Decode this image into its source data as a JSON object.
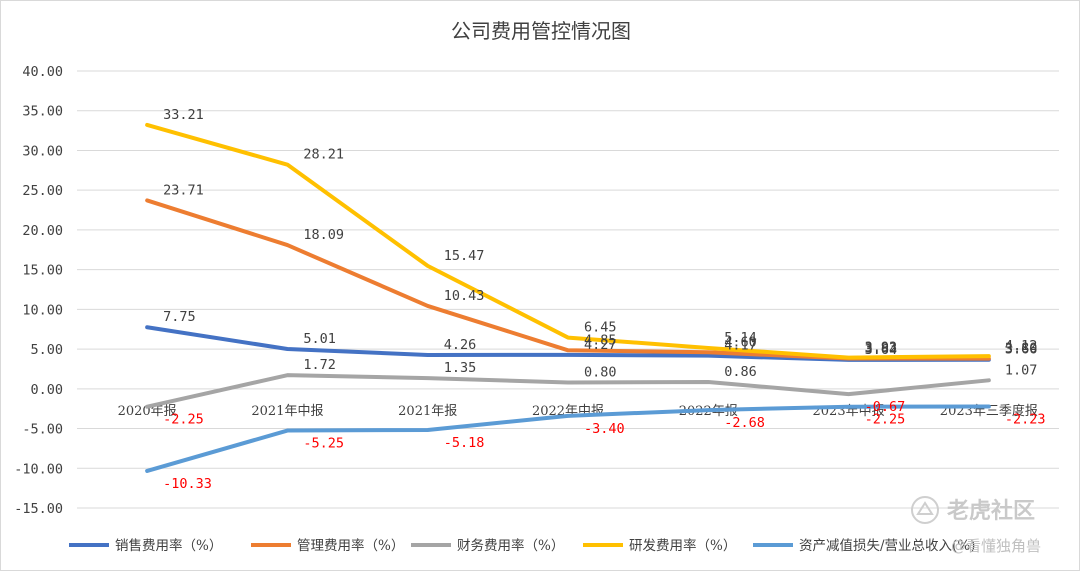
{
  "chart_data": {
    "type": "line",
    "title": "公司费用管控情况图",
    "categories": [
      "2020年报",
      "2021年中报",
      "2021年报",
      "2022年中报",
      "2022年报",
      "2023年中报",
      "2023年三季度报"
    ],
    "ylim": [
      -15,
      40
    ],
    "yticks": [
      "-15.00",
      "-10.00",
      "-5.00",
      "0.00",
      "5.00",
      "10.00",
      "15.00",
      "20.00",
      "25.00",
      "30.00",
      "35.00",
      "40.00"
    ],
    "ytick_values": [
      -15,
      -10,
      -5,
      0,
      5,
      10,
      15,
      20,
      25,
      30,
      35,
      40
    ],
    "grid": true,
    "legend_position": "bottom",
    "series": [
      {
        "name": "销售费用率（%）",
        "color": "#4472c4",
        "values": [
          7.75,
          5.01,
          4.26,
          4.27,
          4.17,
          3.64,
          3.66
        ],
        "labels": [
          "7.75",
          "5.01",
          "4.26",
          "4.27",
          "4.17",
          "3.64",
          "3.66"
        ]
      },
      {
        "name": "管理费用率（%）",
        "color": "#ed7d31",
        "values": [
          23.71,
          18.09,
          10.43,
          4.85,
          4.6,
          3.82,
          3.8
        ],
        "labels": [
          "23.71",
          "18.09",
          "10.43",
          "4.85",
          "4.60",
          "3.82",
          "3.80"
        ]
      },
      {
        "name": "财务费用率（%）",
        "color": "#a5a5a5",
        "values": [
          -2.25,
          1.72,
          1.35,
          0.8,
          0.86,
          -0.67,
          1.07
        ],
        "labels": [
          "-2.25",
          "1.72",
          "1.35",
          "0.80",
          "0.86",
          "-0.67",
          "1.07"
        ]
      },
      {
        "name": "研发费用率（%）",
        "color": "#ffc000",
        "values": [
          33.21,
          28.21,
          15.47,
          6.45,
          5.14,
          3.93,
          4.12
        ],
        "labels": [
          "33.21",
          "28.21",
          "15.47",
          "6.45",
          "5.14",
          "3.93",
          "4.12"
        ]
      },
      {
        "name": "资产减值损失/营业总收入(%)",
        "color": "#5b9bd5",
        "values": [
          -10.33,
          -5.25,
          -5.18,
          -3.4,
          -2.68,
          -2.25,
          -2.23
        ],
        "labels": [
          "-10.33",
          "-5.25",
          "-5.18",
          "-3.40",
          "-2.68",
          "-2.25",
          "-2.23"
        ]
      }
    ]
  },
  "watermark": {
    "brand": "老虎社区",
    "author": "@看懂独角兽"
  }
}
